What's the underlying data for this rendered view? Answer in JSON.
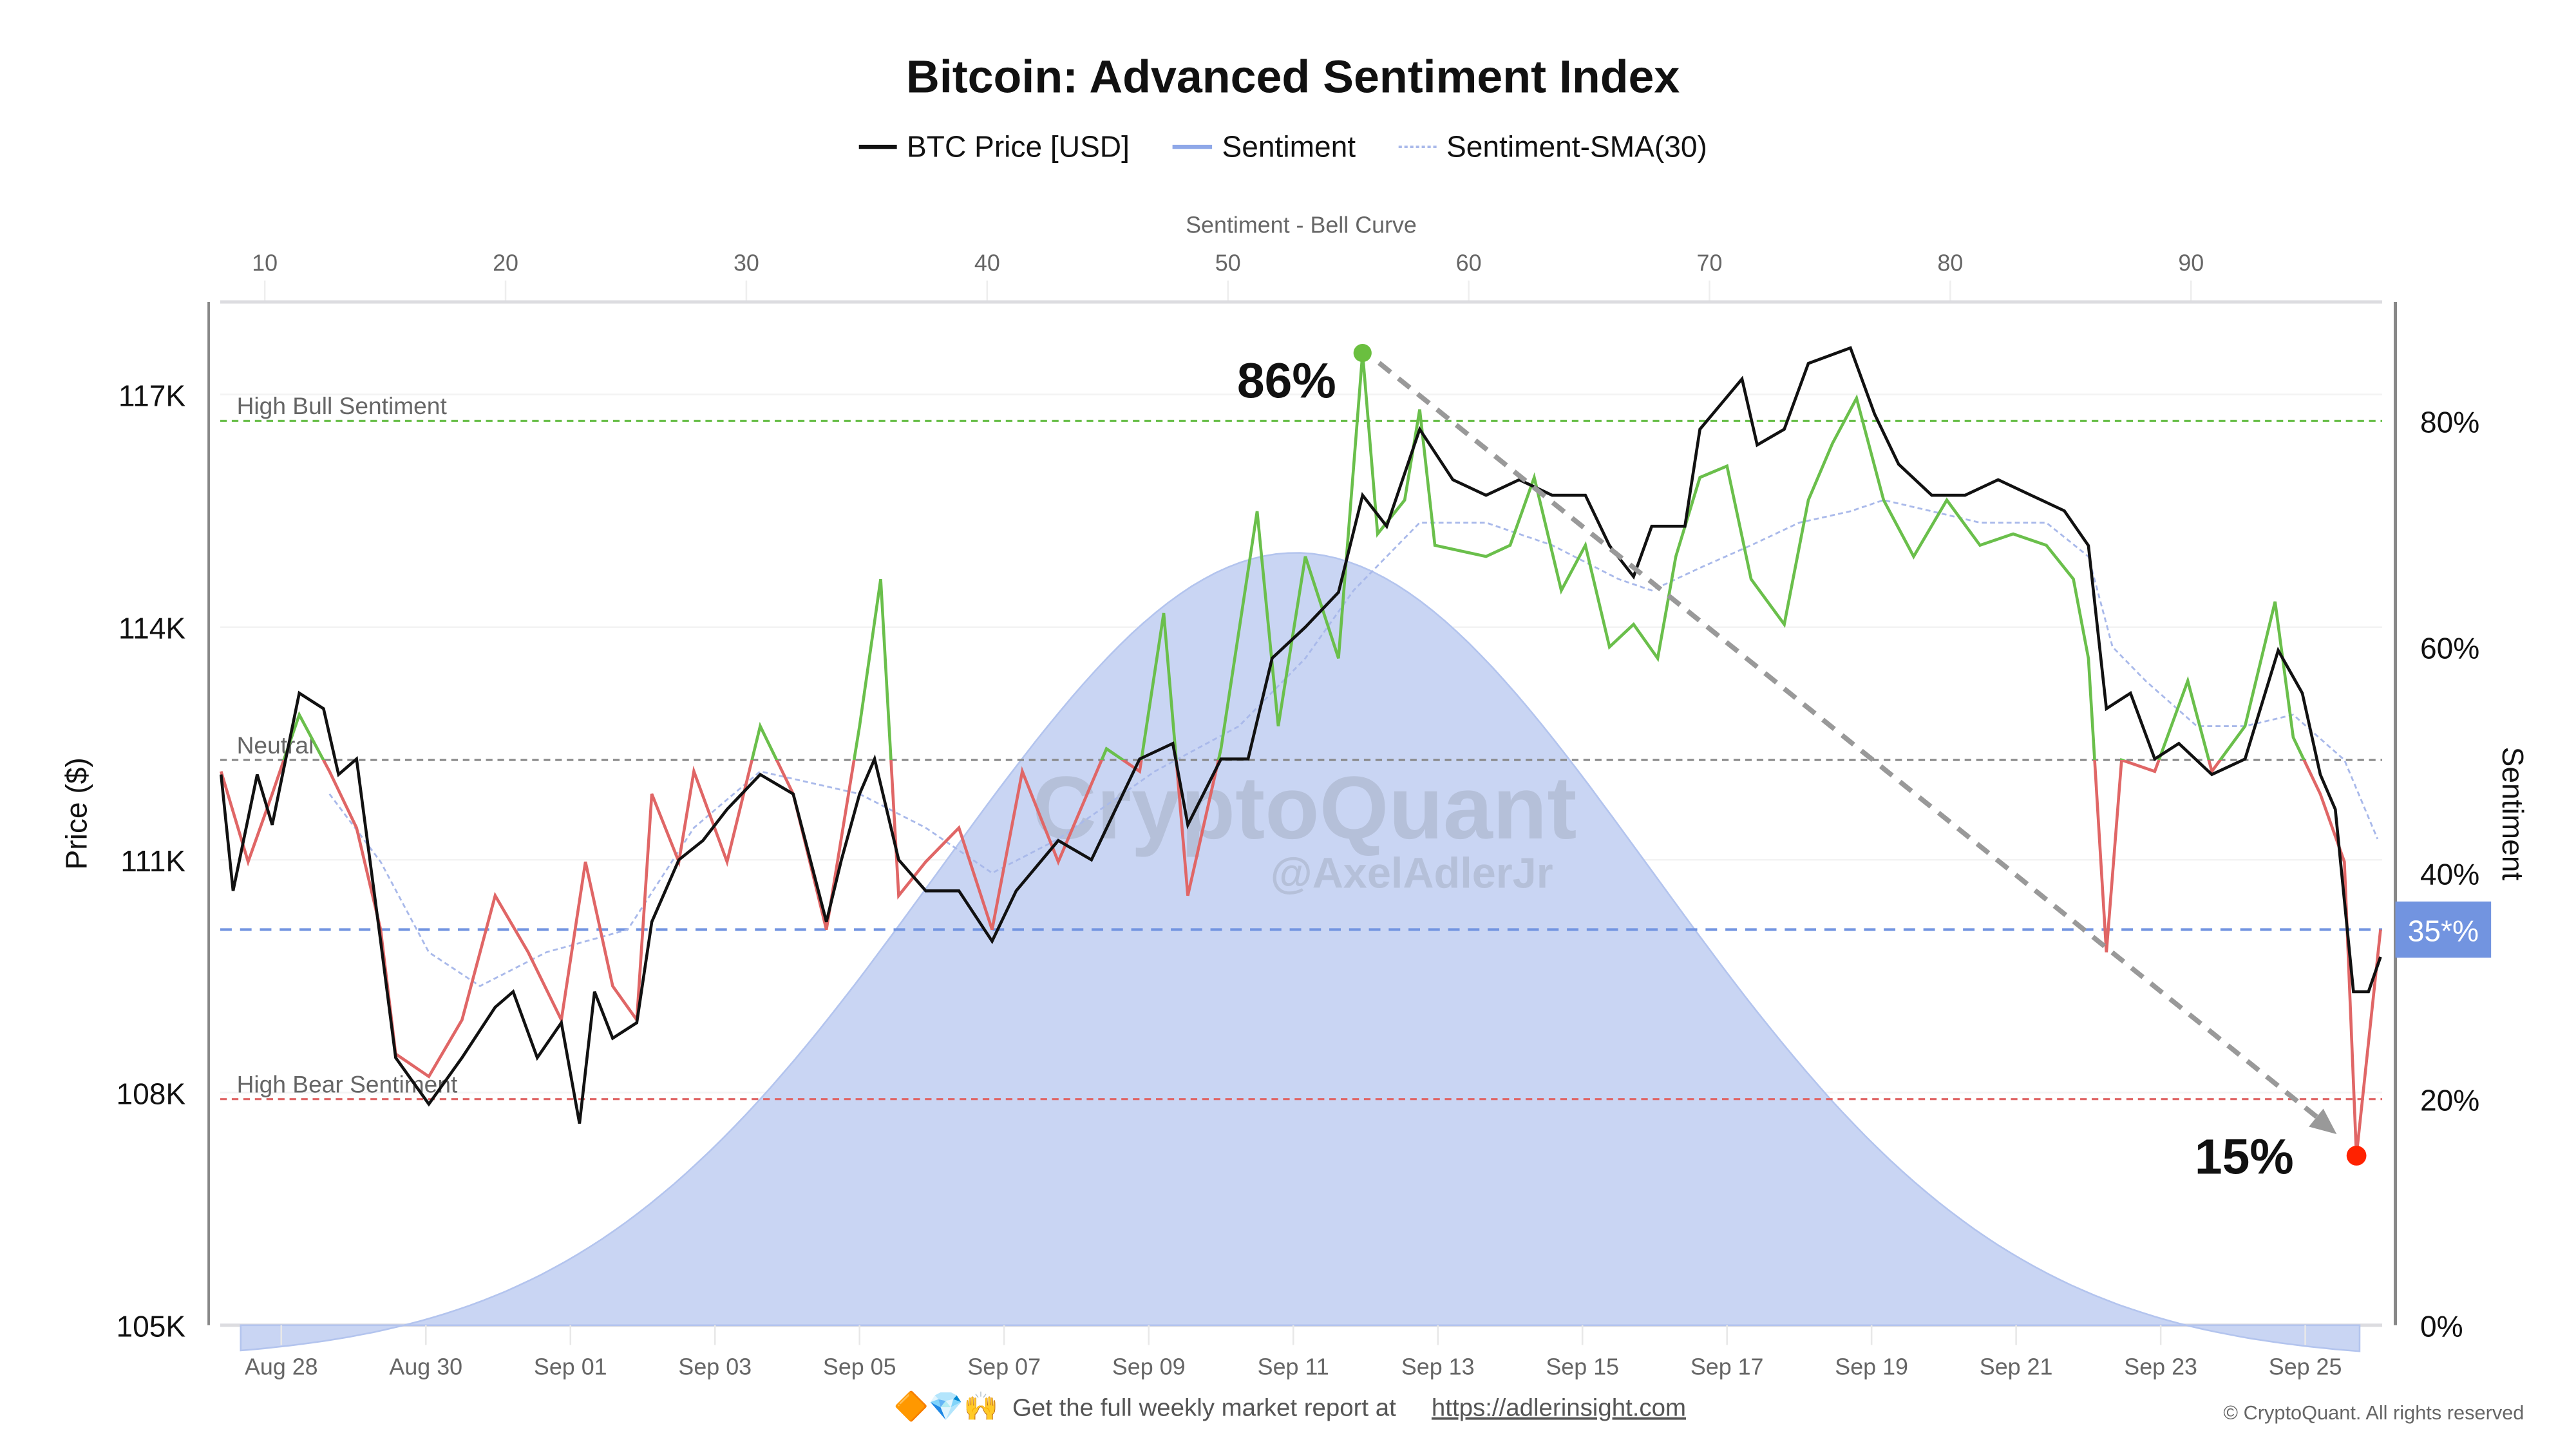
{
  "chart_data": {
    "type": "line",
    "title": "Bitcoin: Advanced Sentiment Index",
    "legend": {
      "placement": "top-center",
      "entries": [
        {
          "label": "BTC Price [USD]",
          "color": "#111111",
          "style": "solid"
        },
        {
          "label": "Sentiment",
          "color": "#8fa8e8",
          "style": "solid"
        },
        {
          "label": "Sentiment-SMA(30)",
          "color": "#a9b9ea",
          "style": "dotted"
        }
      ]
    },
    "x_axis": {
      "type": "date",
      "tick_labels": [
        "Aug 28",
        "Aug 30",
        "Sep 01",
        "Sep 03",
        "Sep 05",
        "Sep 07",
        "Sep 09",
        "Sep 11",
        "Sep 13",
        "Sep 15",
        "Sep 17",
        "Sep 19",
        "Sep 21",
        "Sep 23",
        "Sep 25"
      ],
      "range": [
        "2025-08-27T04:00",
        "2025-09-26T01:00"
      ]
    },
    "y_left": {
      "label": "Price ($)",
      "tick_labels": [
        "117K",
        "114K",
        "111K",
        "108K",
        "105K"
      ],
      "ticks": [
        117000,
        114000,
        111000,
        108000,
        105000
      ],
      "range": [
        105000,
        118300
      ]
    },
    "y_right": {
      "label": "Sentiment",
      "tick_labels": [
        "80%",
        "60%",
        "40%",
        "20%",
        "0%"
      ],
      "ticks": [
        80,
        60,
        40,
        20,
        0
      ],
      "range": [
        0,
        90.5
      ]
    },
    "top_axis": {
      "label": "Sentiment - Bell Curve",
      "tick_labels": [
        "10",
        "20",
        "30",
        "40",
        "50",
        "60",
        "70",
        "80",
        "90"
      ],
      "ticks": [
        10,
        20,
        30,
        40,
        50,
        60,
        70,
        80,
        90
      ]
    },
    "grid": true,
    "reference_lines": [
      {
        "label": "High Bull Sentiment",
        "value": 80,
        "color": "#6abf4b"
      },
      {
        "label": "Neutral",
        "value": 50,
        "color": "#888888"
      },
      {
        "label": "High Bear Sentiment",
        "value": 20,
        "color": "#e06666"
      },
      {
        "label": "35*%",
        "value": 35,
        "color": "#7294e0"
      }
    ],
    "sentiment_colors": {
      "above_neutral": "#6abf4b",
      "below_neutral": "#e06666"
    },
    "bell_curve": {
      "mean": 52.8,
      "sd": 14.8,
      "range": [
        9,
        97
      ],
      "color": "#c9d5f3"
    },
    "annotations": [
      {
        "label": "86%",
        "date": "2025-09-11T23:00",
        "value": 86,
        "color": "#6abf3f"
      },
      {
        "label": "15%",
        "date": "2025-09-25T17:00",
        "value": 15,
        "color": "#ff2200"
      }
    ],
    "series": [
      {
        "name": "BTC Price [USD]",
        "axis": "left",
        "points": [
          [
            "2025-08-27T04:00",
            112100
          ],
          [
            "2025-08-27T08:00",
            110600
          ],
          [
            "2025-08-27T16:00",
            112100
          ],
          [
            "2025-08-27T21:00",
            111450
          ],
          [
            "2025-08-28T06:00",
            113150
          ],
          [
            "2025-08-28T14:00",
            112950
          ],
          [
            "2025-08-28T19:00",
            112100
          ],
          [
            "2025-08-29T01:00",
            112300
          ],
          [
            "2025-08-29T09:00",
            109950
          ],
          [
            "2025-08-29T14:00",
            108450
          ],
          [
            "2025-08-30T01:00",
            107850
          ],
          [
            "2025-08-30T12:00",
            108450
          ],
          [
            "2025-08-30T23:00",
            109100
          ],
          [
            "2025-08-31T05:00",
            109300
          ],
          [
            "2025-08-31T13:00",
            108450
          ],
          [
            "2025-08-31T21:00",
            108900
          ],
          [
            "2025-09-01T03:00",
            107600
          ],
          [
            "2025-09-01T08:00",
            109300
          ],
          [
            "2025-09-01T14:00",
            108700
          ],
          [
            "2025-09-01T22:00",
            108900
          ],
          [
            "2025-09-02T03:00",
            110200
          ],
          [
            "2025-09-02T12:00",
            111000
          ],
          [
            "2025-09-02T20:00",
            111250
          ],
          [
            "2025-09-03T04:00",
            111650
          ],
          [
            "2025-09-03T15:00",
            112100
          ],
          [
            "2025-09-04T02:00",
            111850
          ],
          [
            "2025-09-04T13:00",
            110200
          ],
          [
            "2025-09-04T18:00",
            111000
          ],
          [
            "2025-09-05T00:00",
            111850
          ],
          [
            "2025-09-05T05:00",
            112300
          ],
          [
            "2025-09-05T13:00",
            111000
          ],
          [
            "2025-09-05T22:00",
            110600
          ],
          [
            "2025-09-06T09:00",
            110600
          ],
          [
            "2025-09-06T20:00",
            109950
          ],
          [
            "2025-09-07T04:00",
            110600
          ],
          [
            "2025-09-07T18:00",
            111250
          ],
          [
            "2025-09-08T05:00",
            111000
          ],
          [
            "2025-09-08T21:00",
            112300
          ],
          [
            "2025-09-09T08:00",
            112500
          ],
          [
            "2025-09-09T13:00",
            111450
          ],
          [
            "2025-09-10T00:00",
            112300
          ],
          [
            "2025-09-10T09:00",
            112300
          ],
          [
            "2025-09-10T17:00",
            113600
          ],
          [
            "2025-09-11T04:00",
            114000
          ],
          [
            "2025-09-11T15:00",
            114450
          ],
          [
            "2025-09-11T23:00",
            115700
          ],
          [
            "2025-09-12T07:00",
            115300
          ],
          [
            "2025-09-12T18:00",
            116550
          ],
          [
            "2025-09-13T05:00",
            115900
          ],
          [
            "2025-09-13T16:00",
            115700
          ],
          [
            "2025-09-14T03:00",
            115900
          ],
          [
            "2025-09-14T14:00",
            115700
          ],
          [
            "2025-09-15T01:00",
            115700
          ],
          [
            "2025-09-15T09:00",
            115050
          ],
          [
            "2025-09-15T17:00",
            114650
          ],
          [
            "2025-09-15T23:00",
            115300
          ],
          [
            "2025-09-16T10:00",
            115300
          ],
          [
            "2025-09-16T15:00",
            116550
          ],
          [
            "2025-09-17T05:00",
            117200
          ],
          [
            "2025-09-17T10:00",
            116350
          ],
          [
            "2025-09-17T19:00",
            116550
          ],
          [
            "2025-09-18T03:00",
            117400
          ],
          [
            "2025-09-18T17:00",
            117600
          ],
          [
            "2025-09-19T01:00",
            116750
          ],
          [
            "2025-09-19T09:00",
            116100
          ],
          [
            "2025-09-19T20:00",
            115700
          ],
          [
            "2025-09-20T07:00",
            115700
          ],
          [
            "2025-09-20T18:00",
            115900
          ],
          [
            "2025-09-21T05:00",
            115700
          ],
          [
            "2025-09-21T16:00",
            115500
          ],
          [
            "2025-09-22T00:00",
            115050
          ],
          [
            "2025-09-22T06:00",
            112950
          ],
          [
            "2025-09-22T14:00",
            113150
          ],
          [
            "2025-09-22T22:00",
            112300
          ],
          [
            "2025-09-23T06:00",
            112500
          ],
          [
            "2025-09-23T17:00",
            112100
          ],
          [
            "2025-09-24T04:00",
            112300
          ],
          [
            "2025-09-24T15:00",
            113700
          ],
          [
            "2025-09-24T23:00",
            113150
          ],
          [
            "2025-09-25T05:00",
            112100
          ],
          [
            "2025-09-25T10:00",
            111650
          ],
          [
            "2025-09-25T16:00",
            109300
          ],
          [
            "2025-09-25T21:00",
            109300
          ],
          [
            "2025-09-26T01:00",
            109750
          ]
        ]
      },
      {
        "name": "Sentiment",
        "axis": "right",
        "points": [
          [
            "2025-08-27T04:00",
            49
          ],
          [
            "2025-08-27T13:00",
            41
          ],
          [
            "2025-08-27T21:00",
            47
          ],
          [
            "2025-08-28T06:00",
            54
          ],
          [
            "2025-08-28T16:00",
            49
          ],
          [
            "2025-08-29T01:00",
            44
          ],
          [
            "2025-08-29T09:00",
            35
          ],
          [
            "2025-08-29T14:00",
            24
          ],
          [
            "2025-08-30T01:00",
            22
          ],
          [
            "2025-08-30T12:00",
            27
          ],
          [
            "2025-08-30T23:00",
            38
          ],
          [
            "2025-08-31T10:00",
            33
          ],
          [
            "2025-08-31T21:00",
            27
          ],
          [
            "2025-09-01T05:00",
            41
          ],
          [
            "2025-09-01T14:00",
            30
          ],
          [
            "2025-09-01T22:00",
            27
          ],
          [
            "2025-09-02T03:00",
            47
          ],
          [
            "2025-09-02T12:00",
            41
          ],
          [
            "2025-09-02T17:00",
            49
          ],
          [
            "2025-09-03T04:00",
            41
          ],
          [
            "2025-09-03T15:00",
            53
          ],
          [
            "2025-09-04T02:00",
            47
          ],
          [
            "2025-09-04T13:00",
            35
          ],
          [
            "2025-09-05T00:00",
            53
          ],
          [
            "2025-09-05T07:00",
            66
          ],
          [
            "2025-09-05T13:00",
            38
          ],
          [
            "2025-09-05T22:00",
            41
          ],
          [
            "2025-09-06T09:00",
            44
          ],
          [
            "2025-09-06T20:00",
            35
          ],
          [
            "2025-09-07T06:00",
            49
          ],
          [
            "2025-09-07T18:00",
            41
          ],
          [
            "2025-09-08T10:00",
            51
          ],
          [
            "2025-09-08T21:00",
            49
          ],
          [
            "2025-09-09T05:00",
            63
          ],
          [
            "2025-09-09T13:00",
            38
          ],
          [
            "2025-09-10T00:00",
            51
          ],
          [
            "2025-09-10T12:00",
            72
          ],
          [
            "2025-09-10T19:00",
            53
          ],
          [
            "2025-09-11T04:00",
            68
          ],
          [
            "2025-09-11T15:00",
            59
          ],
          [
            "2025-09-11T23:00",
            86
          ],
          [
            "2025-09-12T04:00",
            70
          ],
          [
            "2025-09-12T13:00",
            73
          ],
          [
            "2025-09-12T18:00",
            81
          ],
          [
            "2025-09-12T23:00",
            69
          ],
          [
            "2025-09-13T16:00",
            68
          ],
          [
            "2025-09-14T00:00",
            69
          ],
          [
            "2025-09-14T08:00",
            75
          ],
          [
            "2025-09-14T17:00",
            65
          ],
          [
            "2025-09-15T01:00",
            69
          ],
          [
            "2025-09-15T09:00",
            60
          ],
          [
            "2025-09-15T17:00",
            62
          ],
          [
            "2025-09-16T01:00",
            59
          ],
          [
            "2025-09-16T07:00",
            68
          ],
          [
            "2025-09-16T15:00",
            75
          ],
          [
            "2025-09-17T00:00",
            76
          ],
          [
            "2025-09-17T08:00",
            66
          ],
          [
            "2025-09-17T19:00",
            62
          ],
          [
            "2025-09-18T03:00",
            73
          ],
          [
            "2025-09-18T11:00",
            78
          ],
          [
            "2025-09-18T19:00",
            82
          ],
          [
            "2025-09-19T04:00",
            73
          ],
          [
            "2025-09-19T14:00",
            68
          ],
          [
            "2025-09-20T01:00",
            73
          ],
          [
            "2025-09-20T12:00",
            69
          ],
          [
            "2025-09-20T23:00",
            70
          ],
          [
            "2025-09-21T10:00",
            69
          ],
          [
            "2025-09-21T19:00",
            66
          ],
          [
            "2025-09-22T00:00",
            59
          ],
          [
            "2025-09-22T06:00",
            33
          ],
          [
            "2025-09-22T11:00",
            50
          ],
          [
            "2025-09-22T22:00",
            49
          ],
          [
            "2025-09-23T09:00",
            57
          ],
          [
            "2025-09-23T17:00",
            49
          ],
          [
            "2025-09-24T04:00",
            53
          ],
          [
            "2025-09-24T14:00",
            64
          ],
          [
            "2025-09-24T20:00",
            52
          ],
          [
            "2025-09-25T05:00",
            47
          ],
          [
            "2025-09-25T13:00",
            41
          ],
          [
            "2025-09-25T17:00",
            15
          ],
          [
            "2025-09-25T21:00",
            25
          ],
          [
            "2025-09-26T01:00",
            35
          ]
        ]
      },
      {
        "name": "Sentiment-SMA(30)",
        "axis": "right",
        "points": [
          [
            "2025-08-28T16:00",
            47
          ],
          [
            "2025-08-29T09:00",
            41
          ],
          [
            "2025-08-30T01:00",
            33
          ],
          [
            "2025-08-30T18:00",
            30
          ],
          [
            "2025-08-31T16:00",
            33
          ],
          [
            "2025-09-01T19:00",
            35
          ],
          [
            "2025-09-02T17:00",
            44
          ],
          [
            "2025-09-03T15:00",
            49
          ],
          [
            "2025-09-05T00:00",
            47
          ],
          [
            "2025-09-05T22:00",
            44
          ],
          [
            "2025-09-06T20:00",
            40
          ],
          [
            "2025-09-07T18:00",
            43
          ],
          [
            "2025-09-09T02:00",
            49
          ],
          [
            "2025-09-10T06:00",
            53
          ],
          [
            "2025-09-11T04:00",
            59
          ],
          [
            "2025-09-11T20:00",
            65
          ],
          [
            "2025-09-12T18:00",
            71
          ],
          [
            "2025-09-13T16:00",
            71
          ],
          [
            "2025-09-14T14:00",
            69
          ],
          [
            "2025-09-15T12:00",
            66
          ],
          [
            "2025-09-15T23:00",
            65
          ],
          [
            "2025-09-16T15:00",
            67
          ],
          [
            "2025-09-17T08:00",
            69
          ],
          [
            "2025-09-18T00:00",
            71
          ],
          [
            "2025-09-18T17:00",
            72
          ],
          [
            "2025-09-19T04:00",
            73
          ],
          [
            "2025-09-19T20:00",
            72
          ],
          [
            "2025-09-20T12:00",
            71
          ],
          [
            "2025-09-21T10:00",
            71
          ],
          [
            "2025-09-22T00:00",
            68
          ],
          [
            "2025-09-22T08:00",
            60
          ],
          [
            "2025-09-22T19:00",
            57
          ],
          [
            "2025-09-23T12:00",
            53
          ],
          [
            "2025-09-24T04:00",
            53
          ],
          [
            "2025-09-24T20:00",
            54
          ],
          [
            "2025-09-25T13:00",
            50
          ],
          [
            "2025-09-26T00:00",
            43
          ]
        ]
      }
    ]
  },
  "watermark": {
    "brand": "CryptoQuant",
    "handle": "@AxelAdlerJr"
  },
  "footer": {
    "emoji": "🔶💎🙌",
    "text": "Get the full weekly market report at",
    "link": "https://adlerinsight.com",
    "copyright": "© CryptoQuant. All rights reserved"
  }
}
